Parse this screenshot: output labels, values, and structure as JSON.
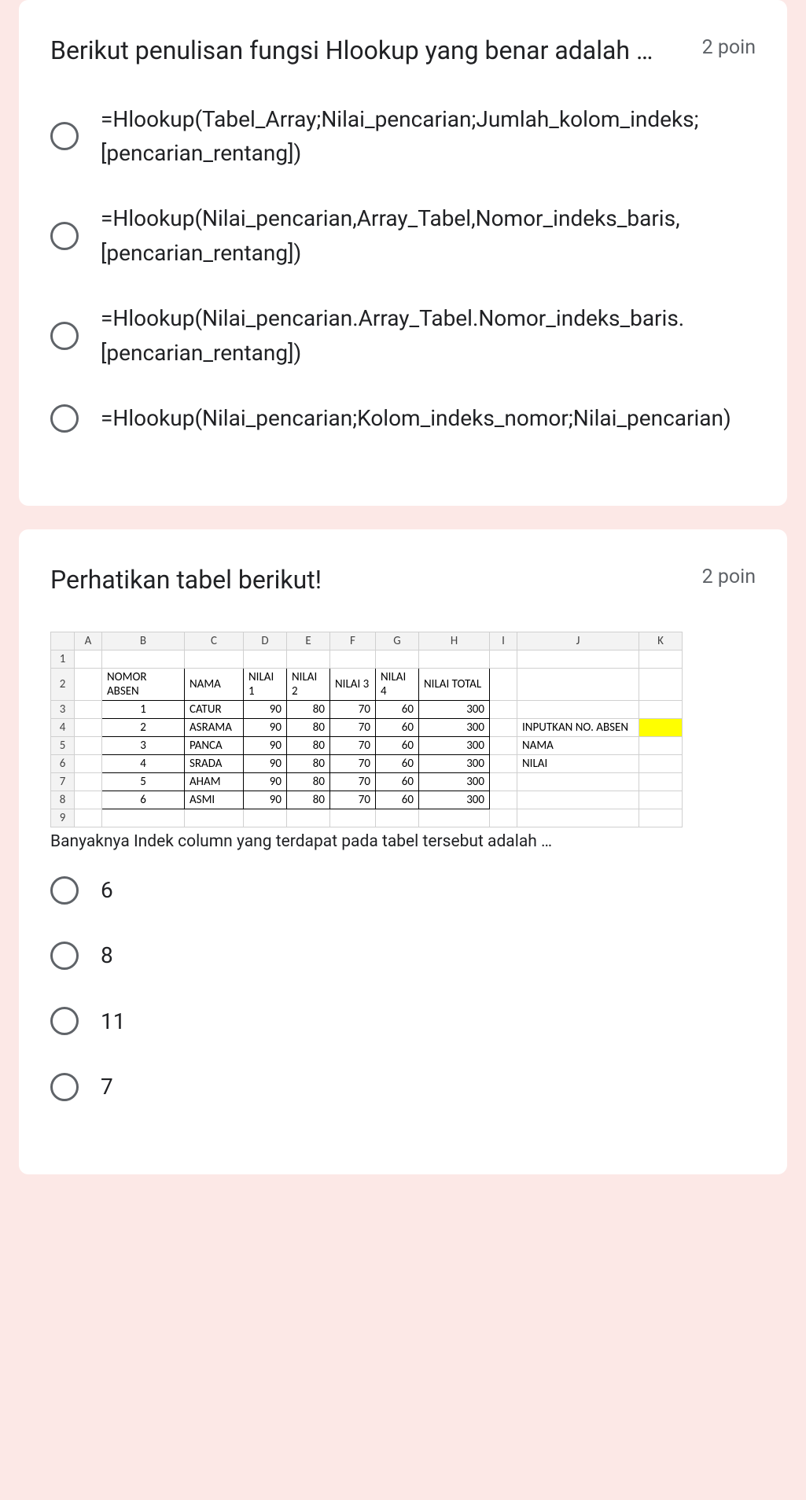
{
  "q1": {
    "title": "Berikut penulisan fungsi Hlookup yang benar adalah …",
    "points": "2 poin",
    "options": [
      "=Hlookup(Tabel_Array;Nilai_pencarian;Jumlah_kolom_indeks;[pencarian_rentang])",
      "=Hlookup(Nilai_pencarian,Array_Tabel,Nomor_indeks_baris,[pencarian_rentang])",
      "=Hlookup(Nilai_pencarian.Array_Tabel.Nomor_indeks_baris.[pencarian_rentang])",
      "=Hlookup(Nilai_pencarian;Kolom_indeks_nomor;Nilai_pencarian)"
    ]
  },
  "q2": {
    "title": "Perhatikan tabel berikut!",
    "points": "2 poin",
    "caption": "Banyaknya Indek column yang terdapat pada tabel tersebut adalah …",
    "options": [
      "6",
      "8",
      "11",
      "7"
    ],
    "sheet": {
      "col_letters": [
        "A",
        "B",
        "C",
        "D",
        "E",
        "F",
        "G",
        "H",
        "I",
        "J",
        "K"
      ],
      "row_numbers": [
        "1",
        "2",
        "3",
        "4",
        "5",
        "6",
        "7",
        "8",
        "9"
      ],
      "header_row": [
        "NOMOR ABSEN",
        "NAMA",
        "NILAI 1",
        "NILAI 2",
        "NILAI 3",
        "NILAI 4",
        "NILAI TOTAL"
      ],
      "data_rows": [
        {
          "no": "1",
          "nama": "CATUR",
          "n1": "90",
          "n2": "80",
          "n3": "70",
          "n4": "60",
          "tot": "300"
        },
        {
          "no": "2",
          "nama": "ASRAMA",
          "n1": "90",
          "n2": "80",
          "n3": "70",
          "n4": "60",
          "tot": "300"
        },
        {
          "no": "3",
          "nama": "PANCA",
          "n1": "90",
          "n2": "80",
          "n3": "70",
          "n4": "60",
          "tot": "300"
        },
        {
          "no": "4",
          "nama": "SRADA",
          "n1": "90",
          "n2": "80",
          "n3": "70",
          "n4": "60",
          "tot": "300"
        },
        {
          "no": "5",
          "nama": "AHAM",
          "n1": "90",
          "n2": "80",
          "n3": "70",
          "n4": "60",
          "tot": "300"
        },
        {
          "no": "6",
          "nama": "ASMI",
          "n1": "90",
          "n2": "80",
          "n3": "70",
          "n4": "60",
          "tot": "300"
        }
      ],
      "side_labels": {
        "input_absen": "INPUTKAN NO. ABSEN",
        "nama": "NAMA",
        "nilai": "NILAI"
      }
    }
  }
}
